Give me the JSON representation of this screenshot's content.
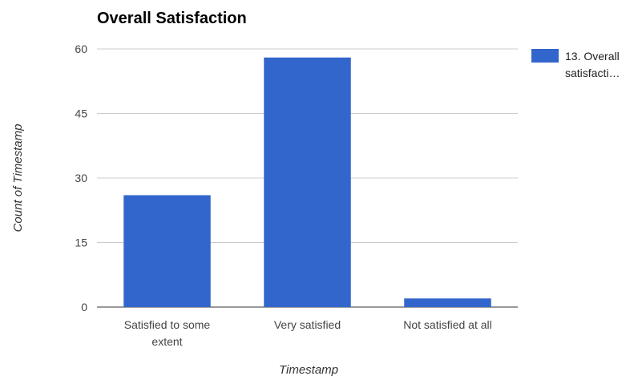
{
  "chart_data": {
    "type": "bar",
    "title": "Overall Satisfaction",
    "xlabel": "Timestamp",
    "ylabel": "Count of Timestamp",
    "categories": [
      "Satisfied to some extent",
      "Very satisfied",
      "Not satisfied at all"
    ],
    "category_label_lines": [
      [
        "Satisfied to some",
        "extent"
      ],
      [
        "Very satisfied"
      ],
      [
        "Not satisfied at all"
      ]
    ],
    "series": [
      {
        "name": "13. Overall satisfacti…",
        "values": [
          26,
          58,
          2
        ],
        "color": "#3366cc"
      }
    ],
    "legend_lines": [
      "13. Overall",
      "satisfacti…"
    ],
    "ylim": [
      0,
      60
    ],
    "yticks": [
      0,
      15,
      30,
      45,
      60
    ],
    "grid": true,
    "legend_position": "right"
  }
}
